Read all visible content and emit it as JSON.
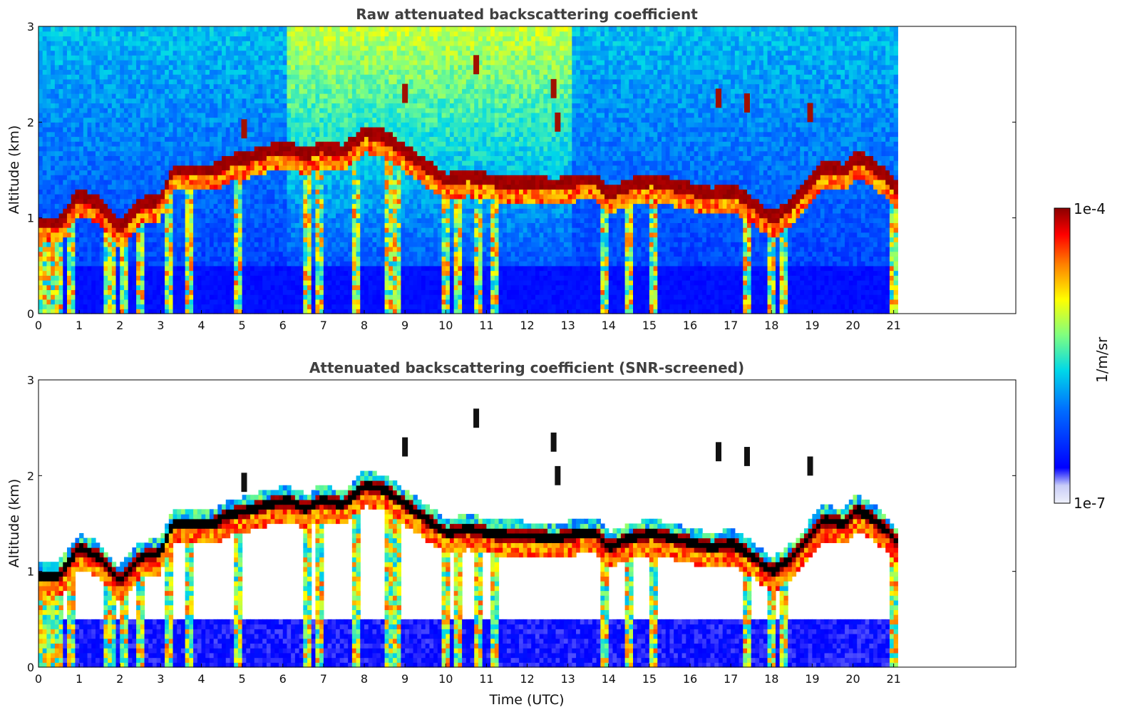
{
  "chart_data": [
    {
      "type": "heatmap",
      "title": "Raw attenuated backscattering coefficient",
      "xlabel": "",
      "ylabel": "Altitude (km)",
      "xlim": [
        0,
        24
      ],
      "ylim": [
        0,
        3
      ],
      "x_ticks": [
        "0",
        "1",
        "2",
        "3",
        "4",
        "5",
        "6",
        "7",
        "8",
        "9",
        "10",
        "11",
        "12",
        "13",
        "14",
        "15",
        "16",
        "17",
        "18",
        "19",
        "20",
        "21"
      ],
      "y_ticks": [
        "0",
        "1",
        "2",
        "3"
      ],
      "data_end_time": 21.1,
      "screened": false,
      "cloud_layer": {
        "time": [
          0.0,
          0.5,
          1.0,
          1.5,
          2.0,
          2.5,
          3.0,
          3.3,
          3.8,
          4.3,
          4.6,
          6.1,
          6.6,
          6.9,
          7.5,
          8.0,
          8.5,
          10.0,
          10.5,
          11.0,
          12.7,
          13.2,
          13.7,
          14.0,
          14.5,
          15.0,
          16.5,
          17.0,
          17.4,
          18.0,
          18.5,
          18.9,
          19.3,
          19.8,
          20.1,
          20.5,
          20.9,
          21.1
        ],
        "altitude_km": [
          0.95,
          0.95,
          1.25,
          1.15,
          0.9,
          1.15,
          1.2,
          1.5,
          1.5,
          1.5,
          1.58,
          1.75,
          1.65,
          1.75,
          1.7,
          1.9,
          1.85,
          1.4,
          1.45,
          1.4,
          1.35,
          1.4,
          1.4,
          1.25,
          1.35,
          1.4,
          1.25,
          1.3,
          1.2,
          1.0,
          1.15,
          1.35,
          1.55,
          1.5,
          1.65,
          1.55,
          1.4,
          1.3
        ]
      },
      "precip_shafts_utc": [
        0.1,
        0.3,
        0.5,
        0.8,
        1.75,
        2.1,
        2.5,
        3.2,
        3.7,
        4.9,
        6.6,
        6.9,
        7.8,
        8.6,
        8.8,
        10.0,
        10.3,
        10.8,
        11.2,
        13.9,
        14.5,
        15.1,
        17.4,
        18.0,
        18.3,
        21.0
      ],
      "elevated_features": [
        {
          "time": 5.05,
          "altitude_km": 1.93
        },
        {
          "time": 9.0,
          "altitude_km": 2.3
        },
        {
          "time": 10.75,
          "altitude_km": 2.6
        },
        {
          "time": 12.65,
          "altitude_km": 2.35
        },
        {
          "time": 12.75,
          "altitude_km": 2.0
        },
        {
          "time": 16.7,
          "altitude_km": 2.25
        },
        {
          "time": 17.4,
          "altitude_km": 2.2
        },
        {
          "time": 18.95,
          "altitude_km": 2.1
        }
      ]
    },
    {
      "type": "heatmap",
      "title": "Attenuated backscattering coefficient (SNR-screened)",
      "xlabel": "Time (UTC)",
      "ylabel": "Altitude (km)",
      "xlim": [
        0,
        24
      ],
      "ylim": [
        0,
        3
      ],
      "x_ticks": [
        "0",
        "1",
        "2",
        "3",
        "4",
        "5",
        "6",
        "7",
        "8",
        "9",
        "10",
        "11",
        "12",
        "13",
        "14",
        "15",
        "16",
        "17",
        "18",
        "19",
        "20",
        "21"
      ],
      "y_ticks": [
        "0",
        "1",
        "2",
        "3"
      ],
      "data_end_time": 21.1,
      "screened": true
    }
  ],
  "colorbar": {
    "label": "1/m/sr",
    "max_label": "1e-4",
    "min_label": "1e-7",
    "scale": "log",
    "colormap": [
      "#eef0fa",
      "#0000ff",
      "#0090ff",
      "#00e0e0",
      "#80ff80",
      "#ffff00",
      "#ff9000",
      "#ff0000",
      "#8b0000"
    ]
  }
}
